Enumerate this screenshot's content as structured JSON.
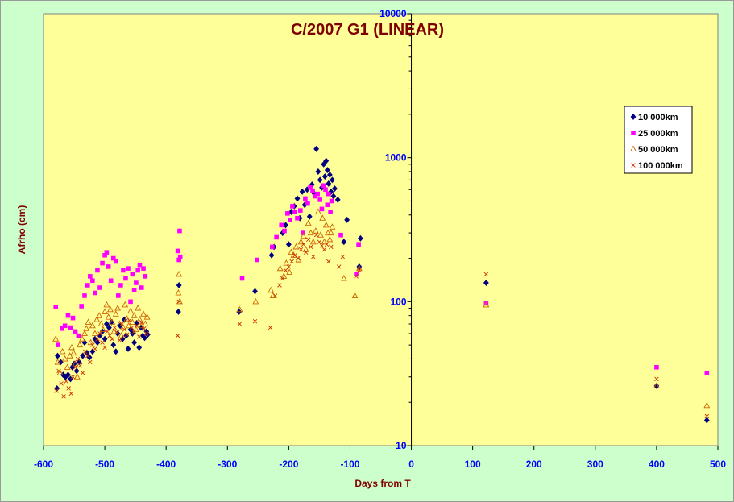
{
  "chart_data": {
    "type": "scatter",
    "title": "C/2007 G1 (LINEAR)",
    "xlabel": "Days from T",
    "ylabel": "Afrho (cm)",
    "xlim": [
      -600,
      500
    ],
    "ylim": [
      10,
      10000
    ],
    "y_scale": "log",
    "x_ticks": [
      -600,
      -500,
      -400,
      -300,
      -200,
      -100,
      0,
      100,
      200,
      300,
      400,
      500
    ],
    "y_ticks": [
      10,
      100,
      1000,
      10000
    ],
    "grid": false,
    "legend_position": "right",
    "plot_background": "#ffff99",
    "chart_background": "#ccffcc",
    "series": [
      {
        "name": "10 000km",
        "marker": "diamond",
        "color": "#000080",
        "points": [
          [
            -578,
            25
          ],
          [
            -577,
            42
          ],
          [
            -572,
            38
          ],
          [
            -568,
            31
          ],
          [
            -564,
            30
          ],
          [
            -560,
            31
          ],
          [
            -556,
            29
          ],
          [
            -553,
            35
          ],
          [
            -550,
            37
          ],
          [
            -546,
            33
          ],
          [
            -542,
            38
          ],
          [
            -536,
            42
          ],
          [
            -533,
            52
          ],
          [
            -529,
            44
          ],
          [
            -525,
            41
          ],
          [
            -520,
            45
          ],
          [
            -516,
            55
          ],
          [
            -512,
            52
          ],
          [
            -508,
            58
          ],
          [
            -504,
            62
          ],
          [
            -500,
            55
          ],
          [
            -497,
            70
          ],
          [
            -493,
            66
          ],
          [
            -489,
            72
          ],
          [
            -486,
            50
          ],
          [
            -482,
            45
          ],
          [
            -479,
            60
          ],
          [
            -475,
            68
          ],
          [
            -471,
            55
          ],
          [
            -468,
            75
          ],
          [
            -465,
            58
          ],
          [
            -462,
            47
          ],
          [
            -458,
            64
          ],
          [
            -455,
            60
          ],
          [
            -452,
            52
          ],
          [
            -448,
            71
          ],
          [
            -444,
            48
          ],
          [
            -441,
            66
          ],
          [
            -438,
            58
          ],
          [
            -435,
            56
          ],
          [
            -432,
            62
          ],
          [
            -430,
            59
          ],
          [
            -380,
            85
          ],
          [
            -379,
            130
          ],
          [
            -281,
            85
          ],
          [
            -255,
            118
          ],
          [
            -228,
            210
          ],
          [
            -224,
            240
          ],
          [
            -210,
            300
          ],
          [
            -205,
            340
          ],
          [
            -200,
            250
          ],
          [
            -196,
            420
          ],
          [
            -191,
            460
          ],
          [
            -186,
            520
          ],
          [
            -182,
            380
          ],
          [
            -178,
            580
          ],
          [
            -174,
            470
          ],
          [
            -170,
            600
          ],
          [
            -166,
            390
          ],
          [
            -162,
            650
          ],
          [
            -158,
            560
          ],
          [
            -155,
            1150
          ],
          [
            -152,
            800
          ],
          [
            -149,
            700
          ],
          [
            -146,
            620
          ],
          [
            -143,
            900
          ],
          [
            -141,
            740
          ],
          [
            -139,
            950
          ],
          [
            -137,
            820
          ],
          [
            -135,
            660
          ],
          [
            -133,
            760
          ],
          [
            -131,
            580
          ],
          [
            -129,
            700
          ],
          [
            -127,
            540
          ],
          [
            -125,
            610
          ],
          [
            -120,
            510
          ],
          [
            -110,
            260
          ],
          [
            -105,
            370
          ],
          [
            -85,
            175
          ],
          [
            -83,
            275
          ],
          [
            122,
            135
          ],
          [
            400,
            26
          ],
          [
            482,
            15
          ]
        ]
      },
      {
        "name": "25 000km",
        "marker": "square",
        "color": "#ff00ff",
        "points": [
          [
            -580,
            92
          ],
          [
            -576,
            50
          ],
          [
            -570,
            65
          ],
          [
            -565,
            68
          ],
          [
            -560,
            80
          ],
          [
            -556,
            66
          ],
          [
            -552,
            77
          ],
          [
            -548,
            62
          ],
          [
            -543,
            58
          ],
          [
            -538,
            93
          ],
          [
            -533,
            110
          ],
          [
            -528,
            130
          ],
          [
            -524,
            150
          ],
          [
            -520,
            140
          ],
          [
            -516,
            115
          ],
          [
            -512,
            165
          ],
          [
            -508,
            125
          ],
          [
            -504,
            185
          ],
          [
            -500,
            210
          ],
          [
            -497,
            220
          ],
          [
            -494,
            175
          ],
          [
            -490,
            140
          ],
          [
            -486,
            200
          ],
          [
            -482,
            190
          ],
          [
            -478,
            110
          ],
          [
            -474,
            130
          ],
          [
            -470,
            165
          ],
          [
            -466,
            145
          ],
          [
            -462,
            170
          ],
          [
            -458,
            100
          ],
          [
            -455,
            155
          ],
          [
            -452,
            120
          ],
          [
            -449,
            135
          ],
          [
            -446,
            165
          ],
          [
            -443,
            180
          ],
          [
            -440,
            125
          ],
          [
            -437,
            170
          ],
          [
            -434,
            150
          ],
          [
            -381,
            225
          ],
          [
            -379,
            195
          ],
          [
            -378,
            310
          ],
          [
            -377,
            205
          ],
          [
            -276,
            145
          ],
          [
            -252,
            195
          ],
          [
            -227,
            240
          ],
          [
            -220,
            280
          ],
          [
            -212,
            340
          ],
          [
            -207,
            310
          ],
          [
            -202,
            410
          ],
          [
            -198,
            370
          ],
          [
            -194,
            460
          ],
          [
            -190,
            420
          ],
          [
            -186,
            380
          ],
          [
            -181,
            430
          ],
          [
            -177,
            300
          ],
          [
            -173,
            520
          ],
          [
            -169,
            480
          ],
          [
            -165,
            620
          ],
          [
            -161,
            590
          ],
          [
            -157,
            540
          ],
          [
            -153,
            560
          ],
          [
            -149,
            510
          ],
          [
            -146,
            440
          ],
          [
            -143,
            640
          ],
          [
            -140,
            600
          ],
          [
            -137,
            470
          ],
          [
            -135,
            560
          ],
          [
            -132,
            420
          ],
          [
            -130,
            500
          ],
          [
            -115,
            290
          ],
          [
            -90,
            155
          ],
          [
            -86,
            250
          ],
          [
            122,
            98
          ],
          [
            400,
            35
          ],
          [
            482,
            32
          ]
        ]
      },
      {
        "name": "50 000km",
        "marker": "triangle",
        "color": "#cc6600",
        "points": [
          [
            -580,
            55
          ],
          [
            -577,
            38
          ],
          [
            -573,
            32
          ],
          [
            -569,
            45
          ],
          [
            -565,
            40
          ],
          [
            -561,
            35
          ],
          [
            -557,
            42
          ],
          [
            -554,
            48
          ],
          [
            -551,
            44
          ],
          [
            -548,
            37
          ],
          [
            -545,
            30
          ],
          [
            -541,
            50
          ],
          [
            -537,
            55
          ],
          [
            -533,
            60
          ],
          [
            -530,
            65
          ],
          [
            -527,
            72
          ],
          [
            -523,
            52
          ],
          [
            -520,
            68
          ],
          [
            -516,
            60
          ],
          [
            -513,
            75
          ],
          [
            -509,
            80
          ],
          [
            -506,
            70
          ],
          [
            -503,
            64
          ],
          [
            -500,
            85
          ],
          [
            -497,
            95
          ],
          [
            -494,
            78
          ],
          [
            -491,
            88
          ],
          [
            -488,
            72
          ],
          [
            -485,
            62
          ],
          [
            -482,
            82
          ],
          [
            -479,
            90
          ],
          [
            -476,
            70
          ],
          [
            -473,
            58
          ],
          [
            -470,
            66
          ],
          [
            -467,
            95
          ],
          [
            -464,
            76
          ],
          [
            -461,
            68
          ],
          [
            -458,
            86
          ],
          [
            -455,
            72
          ],
          [
            -452,
            80
          ],
          [
            -449,
            64
          ],
          [
            -446,
            90
          ],
          [
            -443,
            75
          ],
          [
            -440,
            68
          ],
          [
            -437,
            82
          ],
          [
            -434,
            70
          ],
          [
            -431,
            78
          ],
          [
            -380,
            115
          ],
          [
            -379,
            155
          ],
          [
            -378,
            100
          ],
          [
            -280,
            88
          ],
          [
            -254,
            100
          ],
          [
            -229,
            120
          ],
          [
            -226,
            110
          ],
          [
            -214,
            170
          ],
          [
            -208,
            150
          ],
          [
            -204,
            185
          ],
          [
            -199,
            160
          ],
          [
            -196,
            220
          ],
          [
            -192,
            210
          ],
          [
            -188,
            240
          ],
          [
            -184,
            195
          ],
          [
            -180,
            260
          ],
          [
            -176,
            285
          ],
          [
            -172,
            230
          ],
          [
            -168,
            350
          ],
          [
            -164,
            300
          ],
          [
            -160,
            260
          ],
          [
            -156,
            310
          ],
          [
            -152,
            420
          ],
          [
            -148,
            290
          ],
          [
            -145,
            380
          ],
          [
            -142,
            260
          ],
          [
            -139,
            340
          ],
          [
            -136,
            300
          ],
          [
            -133,
            270
          ],
          [
            -131,
            300
          ],
          [
            -129,
            330
          ],
          [
            -110,
            145
          ],
          [
            -92,
            110
          ],
          [
            -85,
            170
          ],
          [
            122,
            95
          ],
          [
            400,
            26
          ],
          [
            482,
            19
          ]
        ]
      },
      {
        "name": "100 000km",
        "marker": "x",
        "color": "#cc3300",
        "points": [
          [
            -579,
            24
          ],
          [
            -575,
            33
          ],
          [
            -571,
            27
          ],
          [
            -567,
            22
          ],
          [
            -563,
            28
          ],
          [
            -559,
            25
          ],
          [
            -555,
            23
          ],
          [
            -552,
            30
          ],
          [
            -548,
            35
          ],
          [
            -544,
            40
          ],
          [
            -540,
            36
          ],
          [
            -536,
            32
          ],
          [
            -532,
            45
          ],
          [
            -528,
            42
          ],
          [
            -524,
            38
          ],
          [
            -520,
            50
          ],
          [
            -516,
            47
          ],
          [
            -512,
            55
          ],
          [
            -508,
            60
          ],
          [
            -504,
            52
          ],
          [
            -500,
            48
          ],
          [
            -496,
            62
          ],
          [
            -492,
            58
          ],
          [
            -488,
            55
          ],
          [
            -484,
            66
          ],
          [
            -480,
            61
          ],
          [
            -476,
            54
          ],
          [
            -472,
            70
          ],
          [
            -468,
            64
          ],
          [
            -464,
            59
          ],
          [
            -460,
            74
          ],
          [
            -456,
            66
          ],
          [
            -452,
            62
          ],
          [
            -448,
            68
          ],
          [
            -444,
            57
          ],
          [
            -440,
            72
          ],
          [
            -436,
            65
          ],
          [
            -432,
            60
          ],
          [
            -381,
            58
          ],
          [
            -379,
            100
          ],
          [
            -280,
            70
          ],
          [
            -255,
            73
          ],
          [
            -230,
            66
          ],
          [
            -222,
            110
          ],
          [
            -215,
            130
          ],
          [
            -210,
            145
          ],
          [
            -205,
            165
          ],
          [
            -200,
            175
          ],
          [
            -195,
            190
          ],
          [
            -190,
            210
          ],
          [
            -185,
            200
          ],
          [
            -180,
            230
          ],
          [
            -176,
            250
          ],
          [
            -172,
            220
          ],
          [
            -168,
            270
          ],
          [
            -164,
            240
          ],
          [
            -160,
            205
          ],
          [
            -155,
            290
          ],
          [
            -150,
            260
          ],
          [
            -146,
            245
          ],
          [
            -142,
            230
          ],
          [
            -138,
            250
          ],
          [
            -135,
            190
          ],
          [
            -131,
            240
          ],
          [
            -118,
            175
          ],
          [
            -112,
            205
          ],
          [
            -90,
            150
          ],
          [
            -85,
            165
          ],
          [
            122,
            155
          ],
          [
            400,
            29
          ],
          [
            482,
            16
          ]
        ]
      }
    ]
  }
}
